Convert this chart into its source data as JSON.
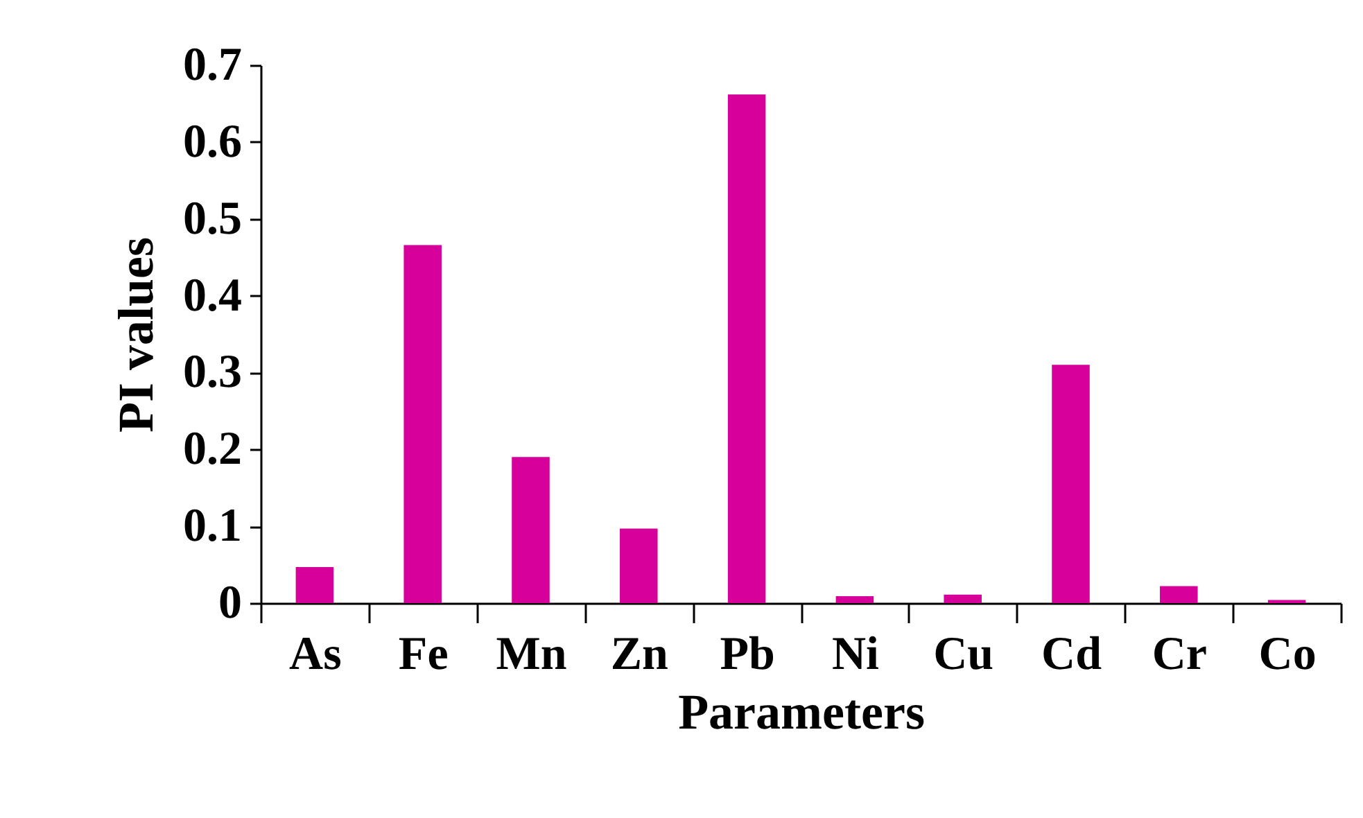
{
  "chart_data": {
    "type": "bar",
    "xlabel": "Parameters",
    "ylabel": "PI values",
    "categories": [
      "As",
      "Fe",
      "Mn",
      "Zn",
      "Pb",
      "Ni",
      "Cu",
      "Cd",
      "Cr",
      "Co"
    ],
    "values": [
      0.047,
      0.466,
      0.19,
      0.097,
      0.662,
      0.009,
      0.011,
      0.31,
      0.022,
      0.004
    ],
    "color": "#d6009a",
    "ylim": [
      0,
      0.7
    ],
    "yticks": [
      0,
      0.1,
      0.2,
      0.3,
      0.4,
      0.5,
      0.6,
      0.7
    ],
    "grid": false
  }
}
